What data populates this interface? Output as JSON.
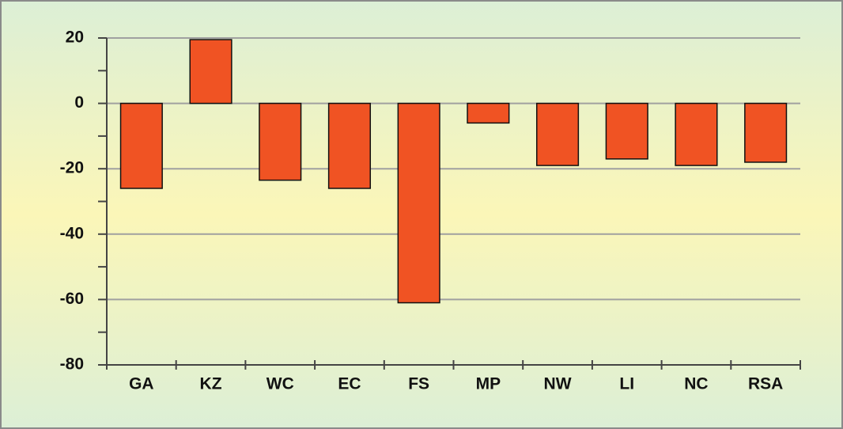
{
  "chart_data": {
    "type": "bar",
    "categories": [
      "GA",
      "KZ",
      "WC",
      "EC",
      "FS",
      "MP",
      "NW",
      "LI",
      "NC",
      "RSA"
    ],
    "values": [
      -26,
      19.5,
      -23.5,
      -26,
      -61,
      -6,
      -19,
      -17,
      -19,
      -18
    ],
    "color": "#f05323",
    "ylim": [
      -80,
      20
    ],
    "yticks": [
      -80,
      -60,
      -40,
      -20,
      0,
      20
    ],
    "grid": true
  }
}
